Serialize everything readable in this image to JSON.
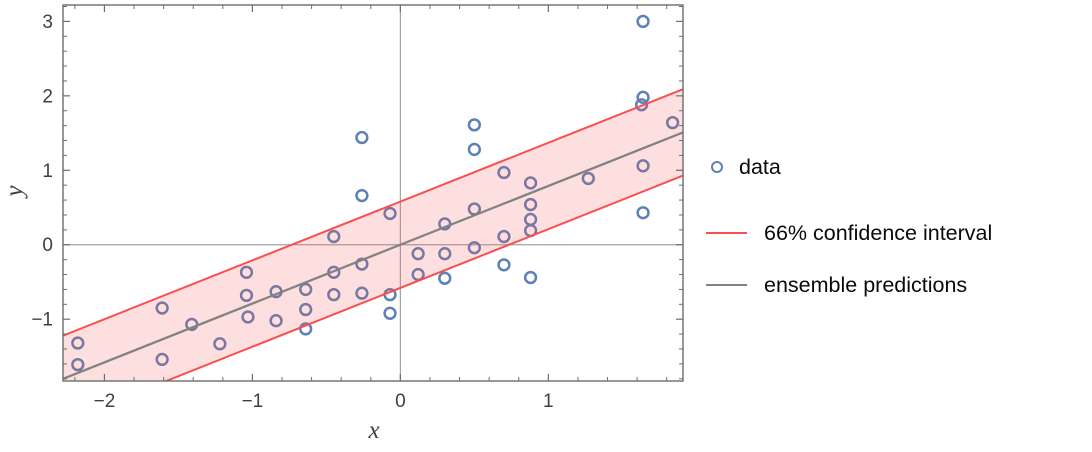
{
  "chart_data": {
    "type": "scatter",
    "title": "",
    "xlabel": "x",
    "ylabel": "y",
    "xlim": [
      -2.28,
      1.91
    ],
    "ylim": [
      -1.83,
      3.22
    ],
    "xticks": [
      {
        "v": -2,
        "label": "−2"
      },
      {
        "v": -1,
        "label": "−1"
      },
      {
        "v": 0,
        "label": "0"
      },
      {
        "v": 1,
        "label": "1"
      }
    ],
    "yticks": [
      {
        "v": -1,
        "label": "−1"
      },
      {
        "v": 0,
        "label": "0"
      },
      {
        "v": 1,
        "label": "1"
      },
      {
        "v": 2,
        "label": "2"
      },
      {
        "v": 3,
        "label": "3"
      }
    ],
    "minor_tick_step": 0.2,
    "grid": false,
    "zero_axes": true,
    "points": [
      [
        -2.18,
        -1.32
      ],
      [
        -2.18,
        -1.61
      ],
      [
        -1.61,
        -0.85
      ],
      [
        -1.61,
        -1.54
      ],
      [
        -1.41,
        -1.07
      ],
      [
        -1.22,
        -1.33
      ],
      [
        -1.04,
        -0.37
      ],
      [
        -1.04,
        -0.68
      ],
      [
        -1.03,
        -0.97
      ],
      [
        -0.84,
        -0.63
      ],
      [
        -0.84,
        -1.02
      ],
      [
        -0.64,
        -0.6
      ],
      [
        -0.64,
        -0.87
      ],
      [
        -0.64,
        -1.13
      ],
      [
        -0.45,
        0.11
      ],
      [
        -0.45,
        -0.37
      ],
      [
        -0.45,
        -0.67
      ],
      [
        -0.26,
        1.44
      ],
      [
        -0.26,
        0.66
      ],
      [
        -0.26,
        -0.26
      ],
      [
        -0.26,
        -0.65
      ],
      [
        -0.07,
        0.42
      ],
      [
        -0.07,
        -0.67
      ],
      [
        -0.07,
        -0.92
      ],
      [
        0.12,
        -0.12
      ],
      [
        0.12,
        -0.4
      ],
      [
        0.3,
        0.28
      ],
      [
        0.3,
        -0.12
      ],
      [
        0.3,
        -0.45
      ],
      [
        0.5,
        1.61
      ],
      [
        0.5,
        1.28
      ],
      [
        0.5,
        0.48
      ],
      [
        0.5,
        -0.04
      ],
      [
        0.7,
        0.97
      ],
      [
        0.7,
        0.11
      ],
      [
        0.7,
        -0.27
      ],
      [
        0.88,
        0.83
      ],
      [
        0.88,
        0.54
      ],
      [
        0.88,
        0.34
      ],
      [
        0.88,
        0.19
      ],
      [
        0.88,
        -0.44
      ],
      [
        1.27,
        0.89
      ],
      [
        1.64,
        3.0
      ],
      [
        1.64,
        1.98
      ],
      [
        1.63,
        1.88
      ],
      [
        1.84,
        1.64
      ],
      [
        1.64,
        1.06
      ],
      [
        1.64,
        0.43
      ]
    ],
    "ensemble_line": {
      "slope": 0.79,
      "intercept": 0.0
    },
    "confidence_band": {
      "level": "66%",
      "center_slope": 0.79,
      "center_intercept": 0.0,
      "half_width": 0.58
    },
    "colors": {
      "point": "#5e81b5",
      "band_line": "#fb4f4f",
      "band_fill": "#fb4f4f",
      "band_fill_opacity": 0.18,
      "ensemble_line": "#828282",
      "zero_axis": "#a3a3a3",
      "frame": "#6d6d6d",
      "tick_label": "#3f3f3f"
    },
    "legend_position": "right-outside"
  },
  "legend": {
    "items": [
      {
        "label": "data",
        "type": "marker"
      },
      {
        "label": "66% confidence interval",
        "type": "line"
      },
      {
        "label": "ensemble predictions",
        "type": "line"
      }
    ]
  }
}
